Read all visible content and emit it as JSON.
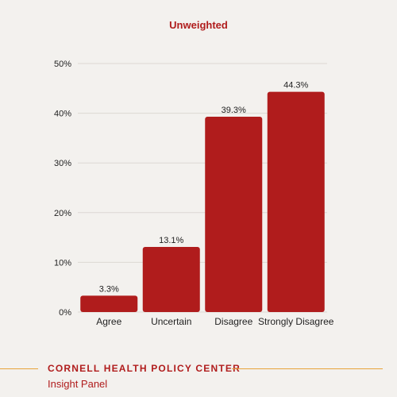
{
  "chart_data": {
    "type": "bar",
    "title": "Unweighted",
    "categories": [
      "Agree",
      "Uncertain",
      "Disagree",
      "Strongly Disagree"
    ],
    "values": [
      3.3,
      13.1,
      39.3,
      44.3
    ],
    "value_labels": [
      "3.3%",
      "13.1%",
      "39.3%",
      "44.3%"
    ],
    "ylim": [
      0,
      50
    ],
    "yticks": [
      0,
      10,
      20,
      30,
      40,
      50
    ],
    "ytick_labels": [
      "0%",
      "10%",
      "20%",
      "30%",
      "40%",
      "50%"
    ],
    "grid": true,
    "bar_color": "#b01c1c",
    "title_color": "#b01c1c"
  },
  "footer": {
    "organization": "CORNELL HEALTH POLICY CENTER",
    "subtitle": "Insight Panel",
    "accent_color": "#e8a33a"
  }
}
